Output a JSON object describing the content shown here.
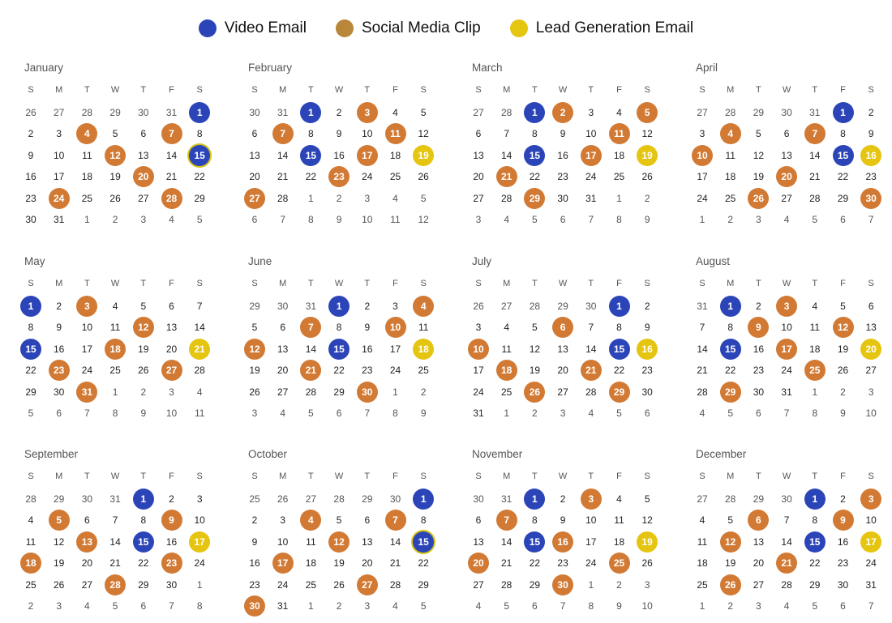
{
  "colors": {
    "video_email": "#2b45b8",
    "social_media_clip": "#d27a34",
    "lead_generation_email": "#e5c50f"
  },
  "legend": [
    {
      "key": "video_email",
      "label": "Video Email",
      "icon": "blue-circle"
    },
    {
      "key": "social_media_clip",
      "label": "Social Media Clip",
      "icon": "orange-circle"
    },
    {
      "key": "lead_generation_email",
      "label": "Lead Generation Email",
      "icon": "yellow-circle"
    }
  ],
  "weekday_headers": [
    "S",
    "M",
    "T",
    "W",
    "T",
    "F",
    "S"
  ],
  "months": [
    {
      "name": "January",
      "first": 26,
      "prevLen": 31,
      "daysInMonth": 31,
      "leadDays": 6,
      "marks": {
        "1": "video_email",
        "4": "social_media_clip",
        "7": "social_media_clip",
        "12": "social_media_clip",
        "15": "video_email",
        "20": "social_media_clip",
        "24": "social_media_clip",
        "28": "social_media_clip"
      },
      "ringed": [
        15
      ]
    },
    {
      "name": "February",
      "first": 30,
      "prevLen": 31,
      "daysInMonth": 28,
      "leadDays": 2,
      "marks": {
        "1": "video_email",
        "3": "social_media_clip",
        "7": "social_media_clip",
        "11": "social_media_clip",
        "15": "video_email",
        "17": "social_media_clip",
        "19": "lead_generation_email",
        "23": "social_media_clip",
        "27": "social_media_clip"
      },
      "ringed": []
    },
    {
      "name": "March",
      "first": 27,
      "prevLen": 28,
      "daysInMonth": 31,
      "leadDays": 2,
      "marks": {
        "1": "video_email",
        "2": "social_media_clip",
        "5": "social_media_clip",
        "11": "social_media_clip",
        "15": "video_email",
        "17": "social_media_clip",
        "19": "lead_generation_email",
        "21": "social_media_clip",
        "29": "social_media_clip"
      },
      "ringed": []
    },
    {
      "name": "April",
      "first": 27,
      "prevLen": 31,
      "daysInMonth": 30,
      "leadDays": 5,
      "marks": {
        "1": "video_email",
        "4": "social_media_clip",
        "7": "social_media_clip",
        "10": "social_media_clip",
        "15": "video_email",
        "16": "lead_generation_email",
        "20": "social_media_clip",
        "26": "social_media_clip",
        "30": "social_media_clip"
      },
      "ringed": []
    },
    {
      "name": "May",
      "first": 1,
      "prevLen": 30,
      "daysInMonth": 31,
      "leadDays": 0,
      "marks": {
        "1": "video_email",
        "3": "social_media_clip",
        "12": "social_media_clip",
        "15": "video_email",
        "18": "social_media_clip",
        "21": "lead_generation_email",
        "23": "social_media_clip",
        "27": "social_media_clip",
        "31": "social_media_clip"
      },
      "ringed": []
    },
    {
      "name": "June",
      "first": 29,
      "prevLen": 31,
      "daysInMonth": 30,
      "leadDays": 3,
      "marks": {
        "1": "video_email",
        "4": "social_media_clip",
        "7": "social_media_clip",
        "10": "social_media_clip",
        "12": "social_media_clip",
        "15": "video_email",
        "18": "lead_generation_email",
        "21": "social_media_clip",
        "30": "social_media_clip"
      },
      "ringed": []
    },
    {
      "name": "July",
      "first": 26,
      "prevLen": 30,
      "daysInMonth": 31,
      "leadDays": 5,
      "marks": {
        "1": "video_email",
        "6": "social_media_clip",
        "10": "social_media_clip",
        "15": "video_email",
        "16": "lead_generation_email",
        "18": "social_media_clip",
        "21": "social_media_clip",
        "26": "social_media_clip",
        "29": "social_media_clip"
      },
      "ringed": []
    },
    {
      "name": "August",
      "first": 31,
      "prevLen": 31,
      "daysInMonth": 31,
      "leadDays": 1,
      "marks": {
        "1": "video_email",
        "3": "social_media_clip",
        "9": "social_media_clip",
        "12": "social_media_clip",
        "15": "video_email",
        "17": "social_media_clip",
        "20": "lead_generation_email",
        "25": "social_media_clip",
        "29": "social_media_clip"
      },
      "ringed": []
    },
    {
      "name": "September",
      "first": 28,
      "prevLen": 31,
      "daysInMonth": 30,
      "leadDays": 4,
      "marks": {
        "1": "video_email",
        "5": "social_media_clip",
        "9": "social_media_clip",
        "13": "social_media_clip",
        "15": "video_email",
        "17": "lead_generation_email",
        "18": "social_media_clip",
        "23": "social_media_clip",
        "28": "social_media_clip"
      },
      "ringed": []
    },
    {
      "name": "October",
      "first": 25,
      "prevLen": 30,
      "daysInMonth": 31,
      "leadDays": 6,
      "marks": {
        "1": "video_email",
        "4": "social_media_clip",
        "7": "social_media_clip",
        "12": "social_media_clip",
        "15": "video_email",
        "17": "social_media_clip",
        "27": "social_media_clip",
        "30": "social_media_clip"
      },
      "ringed": [
        15
      ]
    },
    {
      "name": "November",
      "first": 30,
      "prevLen": 31,
      "daysInMonth": 30,
      "leadDays": 2,
      "marks": {
        "1": "video_email",
        "3": "social_media_clip",
        "7": "social_media_clip",
        "15": "video_email",
        "16": "social_media_clip",
        "19": "lead_generation_email",
        "20": "social_media_clip",
        "25": "social_media_clip",
        "30": "social_media_clip"
      },
      "ringed": []
    },
    {
      "name": "December",
      "first": 27,
      "prevLen": 30,
      "daysInMonth": 31,
      "leadDays": 4,
      "marks": {
        "1": "video_email",
        "3": "social_media_clip",
        "6": "social_media_clip",
        "9": "social_media_clip",
        "12": "social_media_clip",
        "15": "video_email",
        "17": "lead_generation_email",
        "21": "social_media_clip",
        "26": "social_media_clip"
      },
      "ringed": []
    }
  ]
}
